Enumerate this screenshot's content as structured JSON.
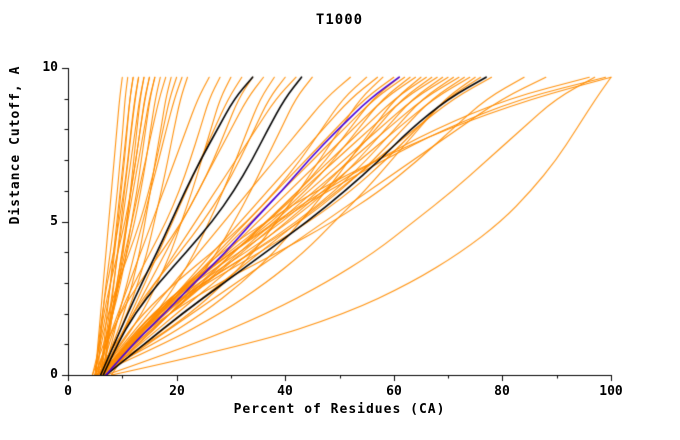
{
  "chart_data": {
    "type": "line",
    "title": "T1000",
    "xlabel": "Percent of Residues (CA)",
    "ylabel": "Distance Cutoff, A",
    "xlim": [
      0,
      100
    ],
    "ylim": [
      0,
      10
    ],
    "x_ticks": [
      "0",
      "20",
      "40",
      "60",
      "80",
      "100"
    ],
    "x_tick_values": [
      0,
      20,
      40,
      60,
      80,
      100
    ],
    "x_minor_step": 10,
    "y_ticks": [
      "0",
      "5",
      "10"
    ],
    "y_tick_values": [
      0,
      5,
      10
    ],
    "y_minor_step": 1,
    "grid": false,
    "legend": "none",
    "colors": {
      "orange": "#ff8c00",
      "black": "#000000",
      "blue": "#4400dd"
    },
    "y_levels": [
      0,
      1,
      2,
      3,
      4,
      5,
      6,
      7,
      8,
      9,
      9.7
    ],
    "series": {
      "orange_curves": [
        [
          5,
          5.5,
          6,
          6.5,
          7,
          7.5,
          8,
          8.5,
          9,
          9.5,
          10
        ],
        [
          5.5,
          5.9,
          6.4,
          7,
          7.8,
          8.5,
          9.1,
          9.6,
          10.1,
          10.5,
          11
        ],
        [
          6,
          6.6,
          7.2,
          7.8,
          8.4,
          9,
          9.6,
          10.2,
          10.8,
          11.4,
          12
        ],
        [
          4.5,
          5.9,
          7,
          7.9,
          8.6,
          9.2,
          9.8,
          10.4,
          10.9,
          11.4,
          12
        ],
        [
          6.5,
          7.2,
          7.8,
          8.5,
          9.1,
          9.8,
          10.4,
          11.1,
          11.7,
          12.4,
          13
        ],
        [
          5,
          5.6,
          6.3,
          7.2,
          8.4,
          9.4,
          10.3,
          11,
          11.6,
          12.3,
          13
        ],
        [
          6,
          6.8,
          7.6,
          8.4,
          9.2,
          10,
          10.8,
          11.6,
          12.4,
          13.2,
          14
        ],
        [
          5.5,
          7,
          8.3,
          9.3,
          10.2,
          10.9,
          11.5,
          12.1,
          12.7,
          13.3,
          14
        ],
        [
          6.5,
          7.4,
          8.2,
          9.1,
          9.9,
          10.8,
          11.6,
          12.5,
          13.3,
          14.2,
          15
        ],
        [
          5,
          5.7,
          6.6,
          7.8,
          9.2,
          10.5,
          11.6,
          12.5,
          13.3,
          14.1,
          15
        ],
        [
          6,
          7,
          8,
          9,
          10,
          11,
          12,
          13,
          14,
          15,
          16
        ],
        [
          4.5,
          6.6,
          8.3,
          9.7,
          10.8,
          11.7,
          12.7,
          13.5,
          14.3,
          15.1,
          16
        ],
        [
          6.5,
          7.2,
          8.2,
          9.4,
          10.9,
          12.3,
          13.4,
          14.4,
          15.2,
          16.1,
          17
        ],
        [
          5.5,
          6.8,
          8,
          9.3,
          10.5,
          11.8,
          13,
          14.3,
          15.5,
          16.8,
          18
        ],
        [
          6,
          8.3,
          10.3,
          11.9,
          13.2,
          14.2,
          15.2,
          16.1,
          17.1,
          18,
          19
        ],
        [
          5,
          6.1,
          7.4,
          9.2,
          11.3,
          13.3,
          14.9,
          16.3,
          17.5,
          18.7,
          20
        ],
        [
          6.5,
          8,
          9.4,
          10.9,
          12.3,
          13.8,
          15.2,
          16.7,
          18.1,
          19.6,
          21
        ],
        [
          5.5,
          8.5,
          10.9,
          12.9,
          14.6,
          15.9,
          17.2,
          18.4,
          19.5,
          20.7,
          22
        ],
        [
          5,
          7.1,
          9.2,
          11.3,
          13.4,
          15.5,
          17.6,
          19.7,
          21.8,
          23.9,
          26
        ],
        [
          6,
          7.5,
          9.5,
          12.2,
          15.2,
          18.1,
          20.5,
          22.5,
          24.3,
          26,
          28
        ],
        [
          5.5,
          9.9,
          13.6,
          16.5,
          19,
          20.9,
          22.9,
          24.6,
          26.3,
          28,
          30
        ],
        [
          6.5,
          9.1,
          11.6,
          14.2,
          16.7,
          19.3,
          21.8,
          24.4,
          26.9,
          29.5,
          32
        ],
        [
          5,
          7,
          9.6,
          13.1,
          17.2,
          21,
          24.1,
          26.8,
          29.1,
          31.4,
          34
        ],
        [
          6,
          9,
          12,
          15,
          18,
          21,
          24,
          27,
          30,
          33,
          36
        ],
        [
          5.5,
          11.4,
          16.2,
          20.1,
          23.4,
          26,
          28.6,
          30.9,
          33.1,
          35.4,
          38
        ],
        [
          6.5,
          8.8,
          11.9,
          15.9,
          20.6,
          24.9,
          28.6,
          31.6,
          34.3,
          37,
          40
        ],
        [
          5,
          8.7,
          12.4,
          16.1,
          19.8,
          23.5,
          27.2,
          30.9,
          34.6,
          38.3,
          42
        ],
        [
          6,
          13,
          18.9,
          23.6,
          27.5,
          30.6,
          33.7,
          36.4,
          39.2,
          41.9,
          45
        ],
        [
          5.5,
          10.2,
          14.8,
          19.5,
          24.1,
          28.8,
          33.4,
          38.1,
          42.7,
          47.4,
          52
        ],
        [
          6,
          9.4,
          13.8,
          19.7,
          26.6,
          33,
          38.3,
          42.8,
          46.7,
          50.6,
          55
        ],
        [
          6.5,
          11.6,
          16.6,
          21.7,
          26.7,
          31.8,
          36.8,
          41.9,
          46.9,
          52,
          57
        ],
        [
          5,
          14.5,
          22.5,
          28.9,
          34.2,
          38.4,
          42.6,
          46.3,
          50.1,
          53.8,
          58
        ],
        [
          6,
          11.4,
          16.8,
          22.2,
          27.6,
          33,
          38.4,
          43.8,
          49.2,
          54.6,
          60
        ],
        [
          7,
          10.8,
          15.6,
          22.1,
          29.7,
          36.7,
          42.6,
          47.5,
          51.8,
          56.1,
          61
        ],
        [
          5.5,
          11.2,
          16.8,
          22.5,
          28.1,
          33.8,
          39.4,
          45.1,
          50.7,
          56.4,
          62
        ],
        [
          6.5,
          10.5,
          15.5,
          22.3,
          30.2,
          37.6,
          43.8,
          48.9,
          53.4,
          57.9,
          63
        ],
        [
          6,
          11.8,
          17.6,
          23.4,
          29.2,
          35,
          40.8,
          46.6,
          52.4,
          58.2,
          64
        ],
        [
          5,
          15.8,
          24.8,
          32,
          38,
          42.8,
          47.6,
          51.8,
          56,
          60.2,
          65
        ],
        [
          7,
          12.9,
          18.8,
          24.7,
          30.6,
          36.5,
          42.4,
          48.3,
          54.2,
          60.1,
          66
        ],
        [
          6,
          10.3,
          15.8,
          23.1,
          31.6,
          39.6,
          46.3,
          51.8,
          56.6,
          61.5,
          67
        ],
        [
          5.5,
          11.8,
          18,
          24.3,
          30.5,
          36.8,
          43,
          49.3,
          55.5,
          61.8,
          68
        ],
        [
          6.5,
          10.9,
          16.5,
          24,
          32.8,
          40.9,
          47.8,
          53.4,
          58.4,
          63.4,
          69
        ],
        [
          6,
          12.4,
          18.8,
          25.2,
          31.6,
          38,
          44.4,
          50.8,
          57.2,
          63.6,
          70
        ],
        [
          7,
          11.5,
          17.2,
          24.9,
          33.9,
          42.2,
          49.2,
          55,
          60.1,
          65.2,
          71
        ],
        [
          5.5,
          12.2,
          18.8,
          25.5,
          32.1,
          38.8,
          45.4,
          52.1,
          58.7,
          65.4,
          72
        ],
        [
          6,
          10.7,
          16.7,
          24.8,
          34.1,
          42.9,
          50.2,
          56.3,
          61.6,
          67,
          73
        ],
        [
          6.5,
          13.3,
          20,
          26.8,
          33.5,
          40.3,
          47,
          53.8,
          60.5,
          67.3,
          74
        ],
        [
          5,
          17.6,
          28.1,
          36.5,
          43.5,
          49.1,
          54.7,
          59.6,
          64.5,
          69.4,
          75
        ],
        [
          6,
          10.9,
          17.2,
          25.6,
          35.4,
          44.5,
          52.2,
          58.5,
          64.1,
          69.7,
          76
        ],
        [
          7,
          14.1,
          21.2,
          28.3,
          35.4,
          42.5,
          49.6,
          56.7,
          63.8,
          70.9,
          78
        ],
        [
          6,
          11.5,
          18.5,
          27.8,
          38.8,
          48.9,
          57.5,
          64.5,
          70.7,
          77,
          84
        ],
        [
          6.5,
          14.7,
          22.8,
          31,
          39.1,
          47.3,
          55.4,
          63.6,
          71.7,
          79.9,
          88
        ],
        [
          7,
          11.5,
          16.8,
          23,
          30.1,
          38.2,
          47.1,
          56.8,
          67.5,
          80.9,
          96
        ],
        [
          6,
          10.7,
          16.2,
          22.7,
          30.2,
          38.6,
          47.9,
          58.1,
          69.2,
          83.2,
          99
        ],
        [
          8,
          11.7,
          16.3,
          21.8,
          28.2,
          36.5,
          45.7,
          56.8,
          69.6,
          85.3,
          100
        ],
        [
          8,
          33.8,
          51.2,
          63.2,
          72.4,
          79.8,
          85.3,
          89.9,
          93.6,
          97.2,
          100
        ],
        [
          7,
          23.2,
          36.7,
          47.5,
          56.5,
          63.7,
          70.9,
          77.2,
          83.5,
          89.8,
          97
        ]
      ],
      "black_curves": [
        [
          6,
          8.5,
          11,
          13.6,
          16.4,
          19,
          21.6,
          24.4,
          27.5,
          30.6,
          34
        ],
        [
          6.5,
          9.1,
          12.3,
          16.7,
          21.8,
          26.6,
          30.6,
          33.9,
          36.8,
          39.9,
          43
        ],
        [
          7,
          14,
          21,
          28.7,
          36.4,
          44.1,
          51.1,
          57.4,
          63,
          70,
          77
        ]
      ],
      "blue_curves": [
        [
          7,
          11.9,
          17.8,
          23.2,
          29.1,
          34,
          39.4,
          44.3,
          49.7,
          55.6,
          61
        ]
      ]
    }
  }
}
